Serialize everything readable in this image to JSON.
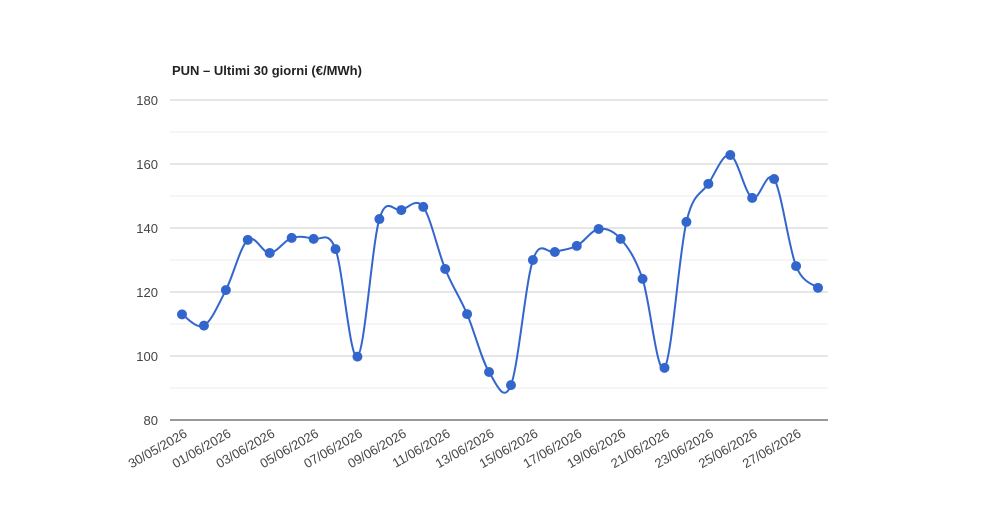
{
  "chart_data": {
    "type": "line",
    "title": "PUN – Ultimi 30 giorni (€/MWh)",
    "categories": [
      "30/05/2026",
      null,
      "01/06/2026",
      null,
      "03/06/2026",
      null,
      "05/06/2026",
      null,
      "07/06/2026",
      null,
      "09/06/2026",
      null,
      "11/06/2026",
      null,
      "13/06/2026",
      null,
      "15/06/2026",
      null,
      "17/06/2026",
      null,
      "19/06/2026",
      null,
      "21/06/2026",
      null,
      "23/06/2026",
      null,
      "25/06/2026",
      null,
      "27/06/2026",
      null
    ],
    "series": [
      {
        "color": "#3366cc",
        "values": [
          113,
          109.5,
          120.6,
          136.3,
          132.2,
          136.9,
          136.6,
          133.4,
          99.8,
          142.8,
          145.6,
          146.6,
          127.2,
          113.1,
          95,
          90.9,
          130,
          132.5,
          134.4,
          139.7,
          136.6,
          124.1,
          96.3,
          141.9,
          153.8,
          162.8,
          149.4,
          155.3,
          128.1,
          121.3
        ]
      }
    ],
    "ylim": [
      80,
      180
    ],
    "yticks": [
      80,
      100,
      120,
      140,
      160,
      180
    ],
    "minor_gridlines": [
      90,
      110,
      130,
      150,
      170
    ],
    "grid": true,
    "smooth": true
  }
}
